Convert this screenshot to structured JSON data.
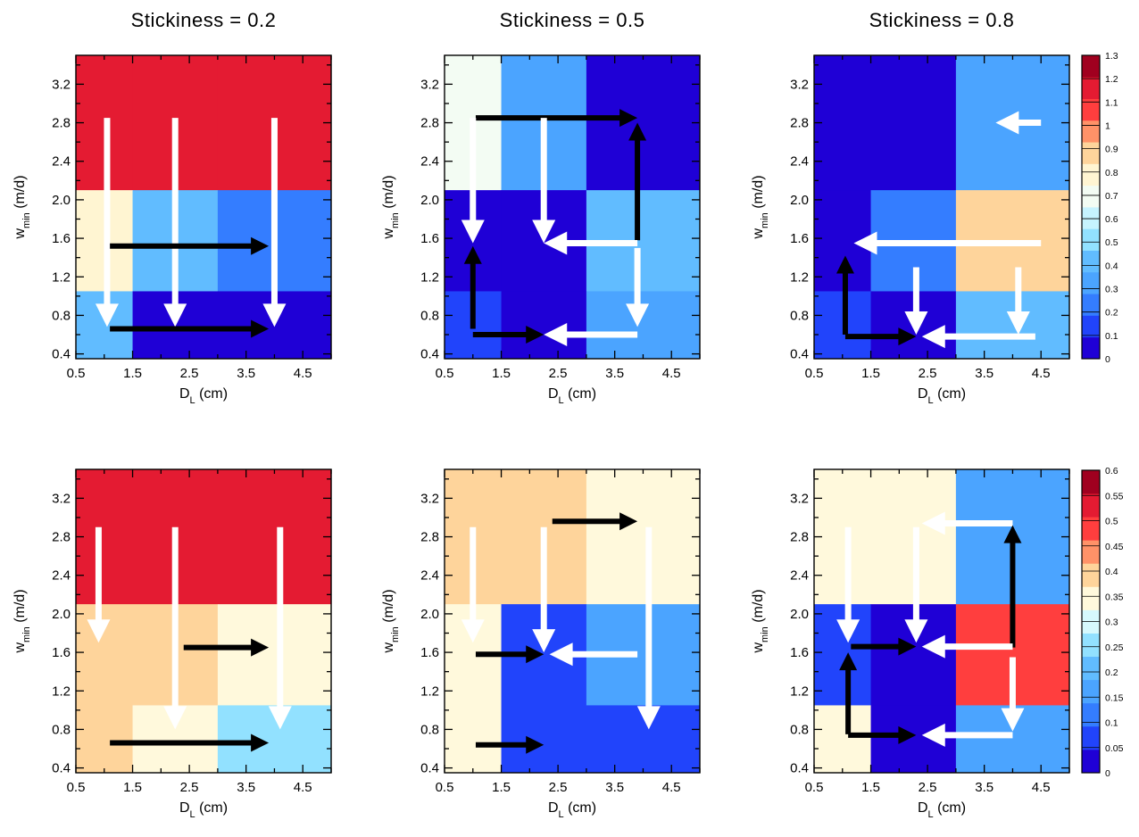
{
  "column_titles": [
    "Stickiness = 0.2",
    "Stickiness = 0.5",
    "Stickiness = 0.8"
  ],
  "axis_text": {
    "x_main": "D",
    "x_sub": "L",
    "x_unit": " (cm)",
    "y_main": "w",
    "y_sub": "min",
    "y_unit": " (m/d)"
  },
  "chart_data": {
    "type": "heatmap",
    "x_edges": [
      0.5,
      1.5,
      3.0,
      5.0
    ],
    "y_edges": [
      0.35,
      1.05,
      2.1,
      3.5
    ],
    "xlim": [
      0.5,
      5.0
    ],
    "ylim": [
      0.35,
      3.5
    ],
    "x_ticks": [
      "0.5",
      "1.5",
      "2.5",
      "3.5",
      "4.5"
    ],
    "x_tick_values": [
      0.5,
      1.5,
      2.5,
      3.5,
      4.5
    ],
    "y_ticks": [
      "0.4",
      "0.8",
      "1.2",
      "1.6",
      "2.0",
      "2.4",
      "2.8",
      "3.2"
    ],
    "y_tick_values": [
      0.4,
      0.8,
      1.2,
      1.6,
      2.0,
      2.4,
      2.8,
      3.2
    ],
    "colorbars": [
      {
        "row": 0,
        "levels": [
          "0",
          "0.1",
          "0.2",
          "0.3",
          "0.4",
          "0.5",
          "0.6",
          "0.7",
          "0.8",
          "0.9",
          "1",
          "1.1",
          "1.2",
          "1.3"
        ],
        "colors": [
          "#1f00d6",
          "#2144fb",
          "#347dff",
          "#4ba4ff",
          "#61bcff",
          "#92e1ff",
          "#c6f3fe",
          "#f3fcf3",
          "#fff5d2",
          "#fed49b",
          "#ff9268",
          "#ff3e3e",
          "#e41b32",
          "#a0001f"
        ]
      },
      {
        "row": 1,
        "levels": [
          "0",
          "0.05",
          "0.1",
          "0.15",
          "0.2",
          "0.25",
          "0.3",
          "0.35",
          "0.4",
          "0.45",
          "0.5",
          "0.55",
          "0.6"
        ],
        "colors": [
          "#1f00d6",
          "#2144fb",
          "#347dff",
          "#4ba4ff",
          "#61bcff",
          "#92e1ff",
          "#d6f9fd",
          "#fff9dc",
          "#fed49b",
          "#ff9268",
          "#ff3e3e",
          "#e41b32",
          "#a0001f"
        ]
      }
    ],
    "panels": [
      {
        "row": 0,
        "col": 0,
        "cells": [
          [
            0.75,
            0.45,
            0.25
          ],
          [
            0.75,
            0.45,
            0.25
          ],
          [
            0.45,
            0.05,
            0.05
          ]
        ],
        "cells_note_rows_top_to_bottom": true,
        "top_band": 1.15,
        "arrows": [
          {
            "color": "white",
            "from": [
              1.05,
              2.85
            ],
            "to": [
              1.05,
              0.68
            ]
          },
          {
            "color": "white",
            "from": [
              2.25,
              2.85
            ],
            "to": [
              2.25,
              0.68
            ]
          },
          {
            "color": "white",
            "from": [
              4.0,
              2.85
            ],
            "to": [
              4.0,
              0.68
            ]
          },
          {
            "color": "black",
            "from": [
              1.1,
              1.52
            ],
            "to": [
              3.9,
              1.52
            ]
          },
          {
            "color": "black",
            "from": [
              1.1,
              0.66
            ],
            "to": [
              3.9,
              0.66
            ]
          }
        ]
      },
      {
        "row": 0,
        "col": 1,
        "cells": [
          [
            0.65,
            0.35,
            0.05
          ],
          [
            0.05,
            0.05,
            0.45
          ],
          [
            0.15,
            0.05,
            0.35
          ]
        ],
        "arrows": [
          {
            "color": "black",
            "from": [
              1.05,
              2.85
            ],
            "to": [
              3.9,
              2.85
            ]
          },
          {
            "color": "black",
            "from": [
              3.9,
              1.58
            ],
            "to": [
              3.9,
              2.8
            ]
          },
          {
            "color": "white",
            "from": [
              1.0,
              2.85
            ],
            "to": [
              1.0,
              1.55
            ]
          },
          {
            "color": "white",
            "from": [
              2.25,
              2.85
            ],
            "to": [
              2.25,
              1.55
            ]
          },
          {
            "color": "white",
            "from": [
              3.9,
              1.55
            ],
            "to": [
              2.25,
              1.55
            ]
          },
          {
            "color": "white",
            "from": [
              3.9,
              1.5
            ],
            "to": [
              3.9,
              0.68
            ]
          },
          {
            "color": "black",
            "from": [
              1.0,
              0.66
            ],
            "to": [
              1.0,
              1.52
            ]
          },
          {
            "color": "black",
            "from": [
              1.0,
              0.6
            ],
            "to": [
              2.25,
              0.6
            ]
          },
          {
            "color": "white",
            "from": [
              3.9,
              0.6
            ],
            "to": [
              2.25,
              0.6
            ]
          }
        ]
      },
      {
        "row": 0,
        "col": 2,
        "cells": [
          [
            0.05,
            0.35
          ],
          [
            0.05,
            0.25,
            0.85
          ],
          [
            0.15,
            0.05,
            0.45
          ]
        ],
        "custom_cells": [
          {
            "x0": 0.5,
            "x1": 3.0,
            "y0": 2.1,
            "y1": 3.5,
            "v": 0.05
          },
          {
            "x0": 3.0,
            "x1": 5.0,
            "y0": 2.1,
            "y1": 3.5,
            "v": 0.35
          },
          {
            "x0": 0.5,
            "x1": 1.5,
            "y0": 1.05,
            "y1": 2.1,
            "v": 0.05
          },
          {
            "x0": 1.5,
            "x1": 3.0,
            "y0": 1.05,
            "y1": 2.1,
            "v": 0.25
          },
          {
            "x0": 3.0,
            "x1": 5.0,
            "y0": 1.05,
            "y1": 2.1,
            "v": 0.85
          },
          {
            "x0": 0.5,
            "x1": 1.5,
            "y0": 0.35,
            "y1": 1.05,
            "v": 0.15
          },
          {
            "x0": 1.5,
            "x1": 3.0,
            "y0": 0.35,
            "y1": 1.05,
            "v": 0.05
          },
          {
            "x0": 3.0,
            "x1": 5.0,
            "y0": 0.35,
            "y1": 1.05,
            "v": 0.45
          }
        ],
        "arrows": [
          {
            "color": "white",
            "from": [
              4.5,
              2.8
            ],
            "to": [
              3.7,
              2.8
            ]
          },
          {
            "color": "white",
            "from": [
              4.5,
              1.55
            ],
            "to": [
              1.2,
              1.55
            ]
          },
          {
            "color": "black",
            "from": [
              1.05,
              0.6
            ],
            "to": [
              1.05,
              1.42
            ]
          },
          {
            "color": "black",
            "from": [
              1.05,
              0.58
            ],
            "to": [
              2.3,
              0.58
            ]
          },
          {
            "color": "white",
            "from": [
              2.3,
              1.3
            ],
            "to": [
              2.3,
              0.6
            ]
          },
          {
            "color": "white",
            "from": [
              4.4,
              0.58
            ],
            "to": [
              2.4,
              0.58
            ]
          },
          {
            "color": "white",
            "from": [
              4.1,
              1.3
            ],
            "to": [
              4.1,
              0.6
            ]
          }
        ]
      },
      {
        "row": 1,
        "col": 0,
        "custom_cells": [
          {
            "x0": 0.5,
            "x1": 5.0,
            "y0": 2.1,
            "y1": 3.5,
            "v": 0.525
          },
          {
            "x0": 0.5,
            "x1": 3.0,
            "y0": 1.05,
            "y1": 2.1,
            "v": 0.375
          },
          {
            "x0": 3.0,
            "x1": 5.0,
            "y0": 1.05,
            "y1": 2.1,
            "v": 0.325
          },
          {
            "x0": 0.5,
            "x1": 1.5,
            "y0": 0.35,
            "y1": 1.05,
            "v": 0.375
          },
          {
            "x0": 1.5,
            "x1": 3.0,
            "y0": 0.35,
            "y1": 1.05,
            "v": 0.325
          },
          {
            "x0": 3.0,
            "x1": 5.0,
            "y0": 0.35,
            "y1": 1.05,
            "v": 0.275
          }
        ],
        "arrows": [
          {
            "color": "white",
            "from": [
              0.9,
              2.9
            ],
            "to": [
              0.9,
              1.7
            ]
          },
          {
            "color": "white",
            "from": [
              2.25,
              2.9
            ],
            "to": [
              2.25,
              0.8
            ]
          },
          {
            "color": "white",
            "from": [
              4.1,
              2.9
            ],
            "to": [
              4.1,
              0.8
            ]
          },
          {
            "color": "black",
            "from": [
              2.4,
              1.65
            ],
            "to": [
              3.9,
              1.65
            ]
          },
          {
            "color": "black",
            "from": [
              1.1,
              0.66
            ],
            "to": [
              3.9,
              0.66
            ]
          }
        ]
      },
      {
        "row": 1,
        "col": 1,
        "custom_cells": [
          {
            "x0": 0.5,
            "x1": 3.0,
            "y0": 2.1,
            "y1": 3.5,
            "v": 0.375
          },
          {
            "x0": 3.0,
            "x1": 5.0,
            "y0": 2.1,
            "y1": 3.5,
            "v": 0.325
          },
          {
            "x0": 0.5,
            "x1": 1.5,
            "y0": 0.35,
            "y1": 2.1,
            "v": 0.325
          },
          {
            "x0": 1.5,
            "x1": 3.0,
            "y0": 0.35,
            "y1": 2.1,
            "v": 0.075
          },
          {
            "x0": 3.0,
            "x1": 5.0,
            "y0": 1.05,
            "y1": 2.1,
            "v": 0.175
          },
          {
            "x0": 3.0,
            "x1": 5.0,
            "y0": 0.35,
            "y1": 1.05,
            "v": 0.075
          }
        ],
        "arrows": [
          {
            "color": "white",
            "from": [
              1.0,
              2.9
            ],
            "to": [
              1.0,
              1.7
            ]
          },
          {
            "color": "white",
            "from": [
              2.25,
              2.9
            ],
            "to": [
              2.25,
              1.6
            ]
          },
          {
            "color": "black",
            "from": [
              2.4,
              2.96
            ],
            "to": [
              3.9,
              2.96
            ]
          },
          {
            "color": "white",
            "from": [
              4.1,
              2.9
            ],
            "to": [
              4.1,
              0.8
            ]
          },
          {
            "color": "black",
            "from": [
              1.05,
              1.58
            ],
            "to": [
              2.25,
              1.58
            ]
          },
          {
            "color": "white",
            "from": [
              3.9,
              1.58
            ],
            "to": [
              2.35,
              1.58
            ]
          },
          {
            "color": "black",
            "from": [
              1.05,
              0.64
            ],
            "to": [
              2.25,
              0.64
            ]
          }
        ]
      },
      {
        "row": 1,
        "col": 2,
        "custom_cells": [
          {
            "x0": 0.5,
            "x1": 3.0,
            "y0": 2.1,
            "y1": 3.5,
            "v": 0.325
          },
          {
            "x0": 3.0,
            "x1": 5.0,
            "y0": 2.1,
            "y1": 3.5,
            "v": 0.175
          },
          {
            "x0": 0.5,
            "x1": 1.5,
            "y0": 1.05,
            "y1": 2.1,
            "v": 0.075
          },
          {
            "x0": 1.5,
            "x1": 3.0,
            "y0": 1.05,
            "y1": 2.1,
            "v": 0.025
          },
          {
            "x0": 3.0,
            "x1": 5.0,
            "y0": 1.05,
            "y1": 2.1,
            "v": 0.475
          },
          {
            "x0": 0.5,
            "x1": 1.5,
            "y0": 0.35,
            "y1": 1.05,
            "v": 0.325
          },
          {
            "x0": 1.5,
            "x1": 3.0,
            "y0": 0.35,
            "y1": 1.05,
            "v": 0.025
          },
          {
            "x0": 3.0,
            "x1": 5.0,
            "y0": 0.35,
            "y1": 1.05,
            "v": 0.175
          }
        ],
        "arrows": [
          {
            "color": "white",
            "from": [
              4.0,
              2.94
            ],
            "to": [
              2.4,
              2.94
            ]
          },
          {
            "color": "black",
            "from": [
              4.0,
              1.65
            ],
            "to": [
              4.0,
              2.92
            ]
          },
          {
            "color": "white",
            "from": [
              1.1,
              2.9
            ],
            "to": [
              1.1,
              1.7
            ]
          },
          {
            "color": "white",
            "from": [
              2.3,
              2.9
            ],
            "to": [
              2.3,
              1.7
            ]
          },
          {
            "color": "black",
            "from": [
              1.15,
              1.66
            ],
            "to": [
              2.3,
              1.66
            ]
          },
          {
            "color": "white",
            "from": [
              4.0,
              1.66
            ],
            "to": [
              2.4,
              1.66
            ]
          },
          {
            "color": "black",
            "from": [
              1.1,
              0.75
            ],
            "to": [
              1.1,
              1.6
            ]
          },
          {
            "color": "black",
            "from": [
              1.1,
              0.74
            ],
            "to": [
              2.3,
              0.74
            ]
          },
          {
            "color": "white",
            "from": [
              4.0,
              0.74
            ],
            "to": [
              2.4,
              0.74
            ]
          },
          {
            "color": "white",
            "from": [
              4.0,
              1.55
            ],
            "to": [
              4.0,
              0.78
            ]
          }
        ]
      }
    ]
  }
}
